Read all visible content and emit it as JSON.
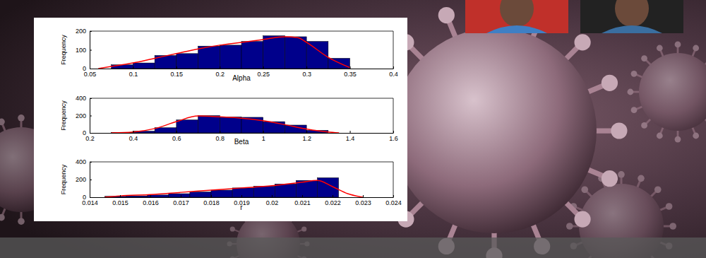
{
  "chart_data": [
    {
      "type": "histogram",
      "x_label": "Alpha",
      "y_label": "Frequency",
      "bins": [
        0.075,
        0.1,
        0.125,
        0.15,
        0.175,
        0.2,
        0.225,
        0.25,
        0.275,
        0.3,
        0.325,
        0.35
      ],
      "counts": [
        20,
        30,
        70,
        80,
        120,
        125,
        145,
        175,
        170,
        145,
        55
      ],
      "color": "#00008b",
      "curve": {
        "x": [
          0.06,
          0.08,
          0.1,
          0.125,
          0.15,
          0.175,
          0.2,
          0.225,
          0.25,
          0.275,
          0.29,
          0.3,
          0.325,
          0.35
        ],
        "values": [
          0,
          15,
          30,
          55,
          80,
          105,
          125,
          140,
          155,
          170,
          165,
          140,
          60,
          5
        ],
        "color": "#ff0000"
      },
      "xlim": [
        0.05,
        0.4
      ],
      "xticks": [
        0.05,
        0.1,
        0.15,
        0.2,
        0.25,
        0.3,
        0.35,
        0.4
      ],
      "ylim": [
        0,
        200
      ],
      "yticks": [
        0,
        100,
        200
      ]
    },
    {
      "type": "histogram",
      "x_label": "Beta",
      "y_label": "Frequency",
      "bins": [
        0.3,
        0.4,
        0.5,
        0.6,
        0.7,
        0.8,
        0.9,
        1.0,
        1.1,
        1.2,
        1.3
      ],
      "counts": [
        5,
        20,
        60,
        150,
        200,
        185,
        180,
        130,
        90,
        30
      ],
      "color": "#00008b",
      "curve": {
        "x": [
          0.3,
          0.4,
          0.5,
          0.6,
          0.7,
          0.8,
          0.9,
          1.0,
          1.1,
          1.2,
          1.3,
          1.35
        ],
        "values": [
          0,
          10,
          50,
          130,
          195,
          185,
          170,
          140,
          95,
          45,
          10,
          0
        ],
        "color": "#ff0000"
      },
      "xlim": [
        0.2,
        1.6
      ],
      "xticks": [
        0.2,
        0.4,
        0.6,
        0.8,
        1,
        1.2,
        1.4,
        1.6
      ],
      "ylim": [
        0,
        400
      ],
      "yticks": [
        0,
        200,
        400
      ]
    },
    {
      "type": "histogram",
      "x_label": "r",
      "y_label": "Frequency",
      "bins": [
        0.0145,
        0.0152,
        0.0159,
        0.0166,
        0.0173,
        0.018,
        0.0187,
        0.0194,
        0.0201,
        0.0208,
        0.0215,
        0.0222
      ],
      "counts": [
        10,
        15,
        25,
        40,
        60,
        80,
        105,
        125,
        150,
        190,
        220
      ],
      "color": "#00008b",
      "curve": {
        "x": [
          0.0145,
          0.015,
          0.016,
          0.017,
          0.018,
          0.019,
          0.02,
          0.021,
          0.0215,
          0.022,
          0.0225,
          0.023
        ],
        "values": [
          0,
          15,
          30,
          55,
          80,
          105,
          130,
          170,
          190,
          120,
          40,
          0
        ],
        "color": "#ff0000"
      },
      "xlim": [
        0.014,
        0.024
      ],
      "xticks": [
        0.014,
        0.015,
        0.016,
        0.017,
        0.018,
        0.019,
        0.02,
        0.021,
        0.022,
        0.023,
        0.024
      ],
      "ylim": [
        0,
        400
      ],
      "yticks": [
        0,
        200,
        400
      ]
    }
  ]
}
